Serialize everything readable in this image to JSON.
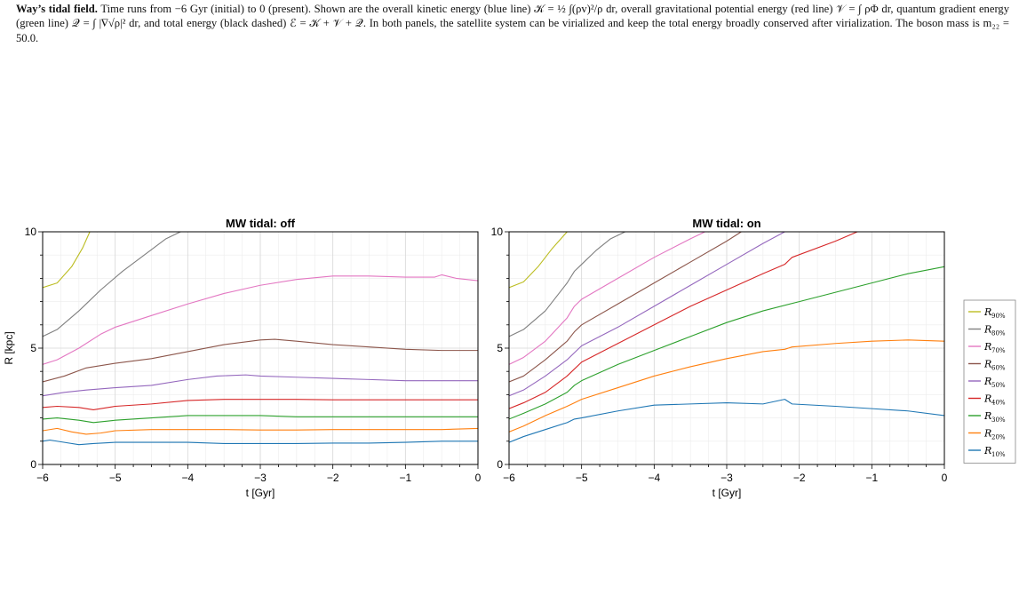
{
  "caption": {
    "bold": "Way’s tidal field.",
    "text": " Time runs from −6 Gyr (initial) to 0 (present). Shown are the overall kinetic energy (blue line) 𝒦 = ½ ∫(ρv)²/ρ dr, overall gravitational potential energy (red line) 𝒱 = ∫ ρΦ dr, quantum gradient energy (green line) 𝒬 = ∫ |∇√ρ|² dr, and total energy (black dashed) ℰ = 𝒦 + 𝒱 + 𝒬. In both panels, the satellite system can be virialized and keep the total energy broadly conserved after virialization. The boson mass is m₂₂ = 50.0."
  },
  "colors": {
    "R90": "#bcbd22",
    "R80": "#7f7f7f",
    "R70": "#e377c2",
    "R60": "#8c564b",
    "R50": "#9467bd",
    "R40": "#d62728",
    "R30": "#2ca02c",
    "R20": "#ff7f0e",
    "R10": "#1f77b4"
  },
  "chart_data": [
    {
      "type": "line",
      "title": "MW tidal: off",
      "xlabel": "t [Gyr]",
      "ylabel": "R [kpc]",
      "xlim": [
        -6,
        0
      ],
      "ylim": [
        0,
        10
      ],
      "xticks": [
        "−6",
        "−5",
        "−4",
        "−3",
        "−2",
        "−1",
        "0"
      ],
      "yticks": [
        "0",
        "5",
        "10"
      ],
      "grid": true,
      "series": [
        {
          "name": "R90%",
          "key": "R90",
          "x": [
            -6,
            -5.8,
            -5.6,
            -5.45,
            -5.35
          ],
          "y": [
            7.6,
            7.8,
            8.5,
            9.3,
            10
          ]
        },
        {
          "name": "R80%",
          "key": "R80",
          "x": [
            -6,
            -5.8,
            -5.5,
            -5.2,
            -4.9,
            -4.6,
            -4.3,
            -4.1
          ],
          "y": [
            5.5,
            5.8,
            6.6,
            7.5,
            8.3,
            9.0,
            9.7,
            10
          ]
        },
        {
          "name": "R70%",
          "key": "R70",
          "x": [
            -6,
            -5.8,
            -5.5,
            -5.2,
            -5.0,
            -4.5,
            -4.0,
            -3.5,
            -3.0,
            -2.5,
            -2.0,
            -1.5,
            -1.0,
            -0.6,
            -0.5,
            -0.3,
            0
          ],
          "y": [
            4.3,
            4.5,
            5.0,
            5.6,
            5.9,
            6.4,
            6.9,
            7.35,
            7.7,
            7.95,
            8.1,
            8.1,
            8.05,
            8.05,
            8.15,
            8.0,
            7.9
          ]
        },
        {
          "name": "R60%",
          "key": "R60",
          "x": [
            -6,
            -5.7,
            -5.4,
            -5.0,
            -4.5,
            -4.0,
            -3.5,
            -3.0,
            -2.8,
            -2.5,
            -2.0,
            -1.5,
            -1.0,
            -0.5,
            0
          ],
          "y": [
            3.55,
            3.8,
            4.15,
            4.35,
            4.55,
            4.85,
            5.15,
            5.35,
            5.38,
            5.3,
            5.15,
            5.05,
            4.95,
            4.9,
            4.9
          ]
        },
        {
          "name": "R50%",
          "key": "R50",
          "x": [
            -6,
            -5.7,
            -5.4,
            -5.0,
            -4.5,
            -4.0,
            -3.6,
            -3.2,
            -3.0,
            -2.5,
            -2.0,
            -1.5,
            -1.0,
            -0.5,
            0
          ],
          "y": [
            2.95,
            3.1,
            3.2,
            3.3,
            3.4,
            3.65,
            3.8,
            3.85,
            3.8,
            3.75,
            3.7,
            3.65,
            3.6,
            3.6,
            3.6
          ]
        },
        {
          "name": "R40%",
          "key": "R40",
          "x": [
            -6,
            -5.8,
            -5.5,
            -5.3,
            -5.0,
            -4.5,
            -4.0,
            -3.5,
            -3.0,
            -2.5,
            -2.0,
            -1.5,
            -1.0,
            -0.5,
            0
          ],
          "y": [
            2.45,
            2.5,
            2.45,
            2.35,
            2.5,
            2.6,
            2.75,
            2.8,
            2.8,
            2.8,
            2.78,
            2.78,
            2.78,
            2.78,
            2.78
          ]
        },
        {
          "name": "R30%",
          "key": "R30",
          "x": [
            -6,
            -5.8,
            -5.5,
            -5.3,
            -5.0,
            -4.5,
            -4.0,
            -3.5,
            -3.0,
            -2.5,
            -2.0,
            -1.5,
            -1.0,
            -0.5,
            0
          ],
          "y": [
            1.95,
            2.0,
            1.9,
            1.8,
            1.9,
            2.0,
            2.1,
            2.1,
            2.1,
            2.05,
            2.05,
            2.05,
            2.05,
            2.05,
            2.05
          ]
        },
        {
          "name": "R20%",
          "key": "R20",
          "x": [
            -6,
            -5.8,
            -5.6,
            -5.4,
            -5.2,
            -5.0,
            -4.5,
            -4.0,
            -3.5,
            -3.0,
            -2.5,
            -2.0,
            -1.5,
            -1.0,
            -0.5,
            0
          ],
          "y": [
            1.45,
            1.55,
            1.4,
            1.3,
            1.35,
            1.45,
            1.5,
            1.5,
            1.5,
            1.48,
            1.48,
            1.5,
            1.5,
            1.5,
            1.5,
            1.55
          ]
        },
        {
          "name": "R10%",
          "key": "R10",
          "x": [
            -6,
            -5.9,
            -5.7,
            -5.5,
            -5.3,
            -5.0,
            -4.5,
            -4.0,
            -3.5,
            -3.0,
            -2.5,
            -2.0,
            -1.5,
            -1.0,
            -0.5,
            0
          ],
          "y": [
            1.0,
            1.05,
            0.95,
            0.85,
            0.9,
            0.95,
            0.95,
            0.95,
            0.9,
            0.9,
            0.9,
            0.92,
            0.92,
            0.95,
            1.0,
            1.0
          ]
        }
      ]
    },
    {
      "type": "line",
      "title": "MW tidal: on",
      "xlabel": "t [Gyr]",
      "ylabel": "",
      "xlim": [
        -6,
        0
      ],
      "ylim": [
        0,
        10
      ],
      "xticks": [
        "−6",
        "−5",
        "−4",
        "−3",
        "−2",
        "−1",
        "0"
      ],
      "yticks": [
        "0",
        "5",
        "10"
      ],
      "grid": true,
      "series": [
        {
          "name": "R90%",
          "key": "R90",
          "x": [
            -6,
            -5.8,
            -5.6,
            -5.4,
            -5.2
          ],
          "y": [
            7.6,
            7.85,
            8.5,
            9.3,
            10
          ]
        },
        {
          "name": "R80%",
          "key": "R80",
          "x": [
            -6,
            -5.8,
            -5.5,
            -5.2,
            -5.1,
            -5.0,
            -4.8,
            -4.6,
            -4.4,
            -4.2
          ],
          "y": [
            5.5,
            5.8,
            6.6,
            7.8,
            8.3,
            8.6,
            9.2,
            9.7,
            10.0,
            10.3
          ]
        },
        {
          "name": "R70%",
          "key": "R70",
          "x": [
            -6,
            -5.8,
            -5.5,
            -5.2,
            -5.1,
            -5.0,
            -4.5,
            -4.0,
            -3.5,
            -3.3
          ],
          "y": [
            4.3,
            4.6,
            5.3,
            6.3,
            6.8,
            7.1,
            8.0,
            8.9,
            9.7,
            10
          ]
        },
        {
          "name": "R60%",
          "key": "R60",
          "x": [
            -6,
            -5.8,
            -5.5,
            -5.2,
            -5.1,
            -5.0,
            -4.5,
            -4.0,
            -3.5,
            -3.0,
            -2.8
          ],
          "y": [
            3.55,
            3.8,
            4.5,
            5.3,
            5.7,
            6.0,
            6.9,
            7.8,
            8.7,
            9.6,
            10
          ]
        },
        {
          "name": "R50%",
          "key": "R50",
          "x": [
            -6,
            -5.8,
            -5.5,
            -5.2,
            -5.1,
            -5.0,
            -4.5,
            -4.0,
            -3.5,
            -3.0,
            -2.5,
            -2.2
          ],
          "y": [
            2.95,
            3.2,
            3.8,
            4.5,
            4.8,
            5.1,
            5.9,
            6.8,
            7.7,
            8.6,
            9.5,
            10
          ]
        },
        {
          "name": "R40%",
          "key": "R40",
          "x": [
            -6,
            -5.8,
            -5.5,
            -5.2,
            -5.1,
            -5.0,
            -4.5,
            -4.0,
            -3.5,
            -3.0,
            -2.5,
            -2.2,
            -2.1,
            -1.5,
            -1.2
          ],
          "y": [
            2.4,
            2.65,
            3.1,
            3.8,
            4.1,
            4.4,
            5.2,
            6.0,
            6.8,
            7.5,
            8.2,
            8.6,
            8.9,
            9.6,
            10
          ]
        },
        {
          "name": "R30%",
          "key": "R30",
          "x": [
            -6,
            -5.8,
            -5.5,
            -5.2,
            -5.1,
            -5.0,
            -4.5,
            -4.0,
            -3.5,
            -3.0,
            -2.5,
            -2.0,
            -1.5,
            -1.0,
            -0.5,
            0
          ],
          "y": [
            1.95,
            2.2,
            2.6,
            3.1,
            3.4,
            3.6,
            4.3,
            4.9,
            5.5,
            6.1,
            6.6,
            7.0,
            7.4,
            7.8,
            8.2,
            8.5
          ]
        },
        {
          "name": "R20%",
          "key": "R20",
          "x": [
            -6,
            -5.8,
            -5.5,
            -5.2,
            -5.1,
            -5.0,
            -4.5,
            -4.0,
            -3.5,
            -3.0,
            -2.5,
            -2.2,
            -2.1,
            -1.5,
            -1.0,
            -0.5,
            0
          ],
          "y": [
            1.4,
            1.65,
            2.1,
            2.5,
            2.65,
            2.8,
            3.3,
            3.8,
            4.2,
            4.55,
            4.85,
            4.95,
            5.05,
            5.2,
            5.3,
            5.35,
            5.3
          ]
        },
        {
          "name": "R10%",
          "key": "R10",
          "x": [
            -6,
            -5.8,
            -5.5,
            -5.2,
            -5.1,
            -5.0,
            -4.5,
            -4.0,
            -3.5,
            -3.0,
            -2.5,
            -2.2,
            -2.1,
            -1.5,
            -1.0,
            -0.5,
            0
          ],
          "y": [
            0.95,
            1.2,
            1.5,
            1.8,
            1.95,
            2.0,
            2.3,
            2.55,
            2.6,
            2.65,
            2.6,
            2.8,
            2.6,
            2.5,
            2.4,
            2.3,
            2.1
          ]
        }
      ]
    }
  ],
  "legend": {
    "placement": "right",
    "items": [
      {
        "key": "R90",
        "sym": "R",
        "sub": "90%"
      },
      {
        "key": "R80",
        "sym": "R",
        "sub": "80%"
      },
      {
        "key": "R70",
        "sym": "R",
        "sub": "70%"
      },
      {
        "key": "R60",
        "sym": "R",
        "sub": "60%"
      },
      {
        "key": "R50",
        "sym": "R",
        "sub": "50%"
      },
      {
        "key": "R40",
        "sym": "R",
        "sub": "40%"
      },
      {
        "key": "R30",
        "sym": "R",
        "sub": "30%"
      },
      {
        "key": "R20",
        "sym": "R",
        "sub": "20%"
      },
      {
        "key": "R10",
        "sym": "R",
        "sub": "10%"
      }
    ]
  }
}
